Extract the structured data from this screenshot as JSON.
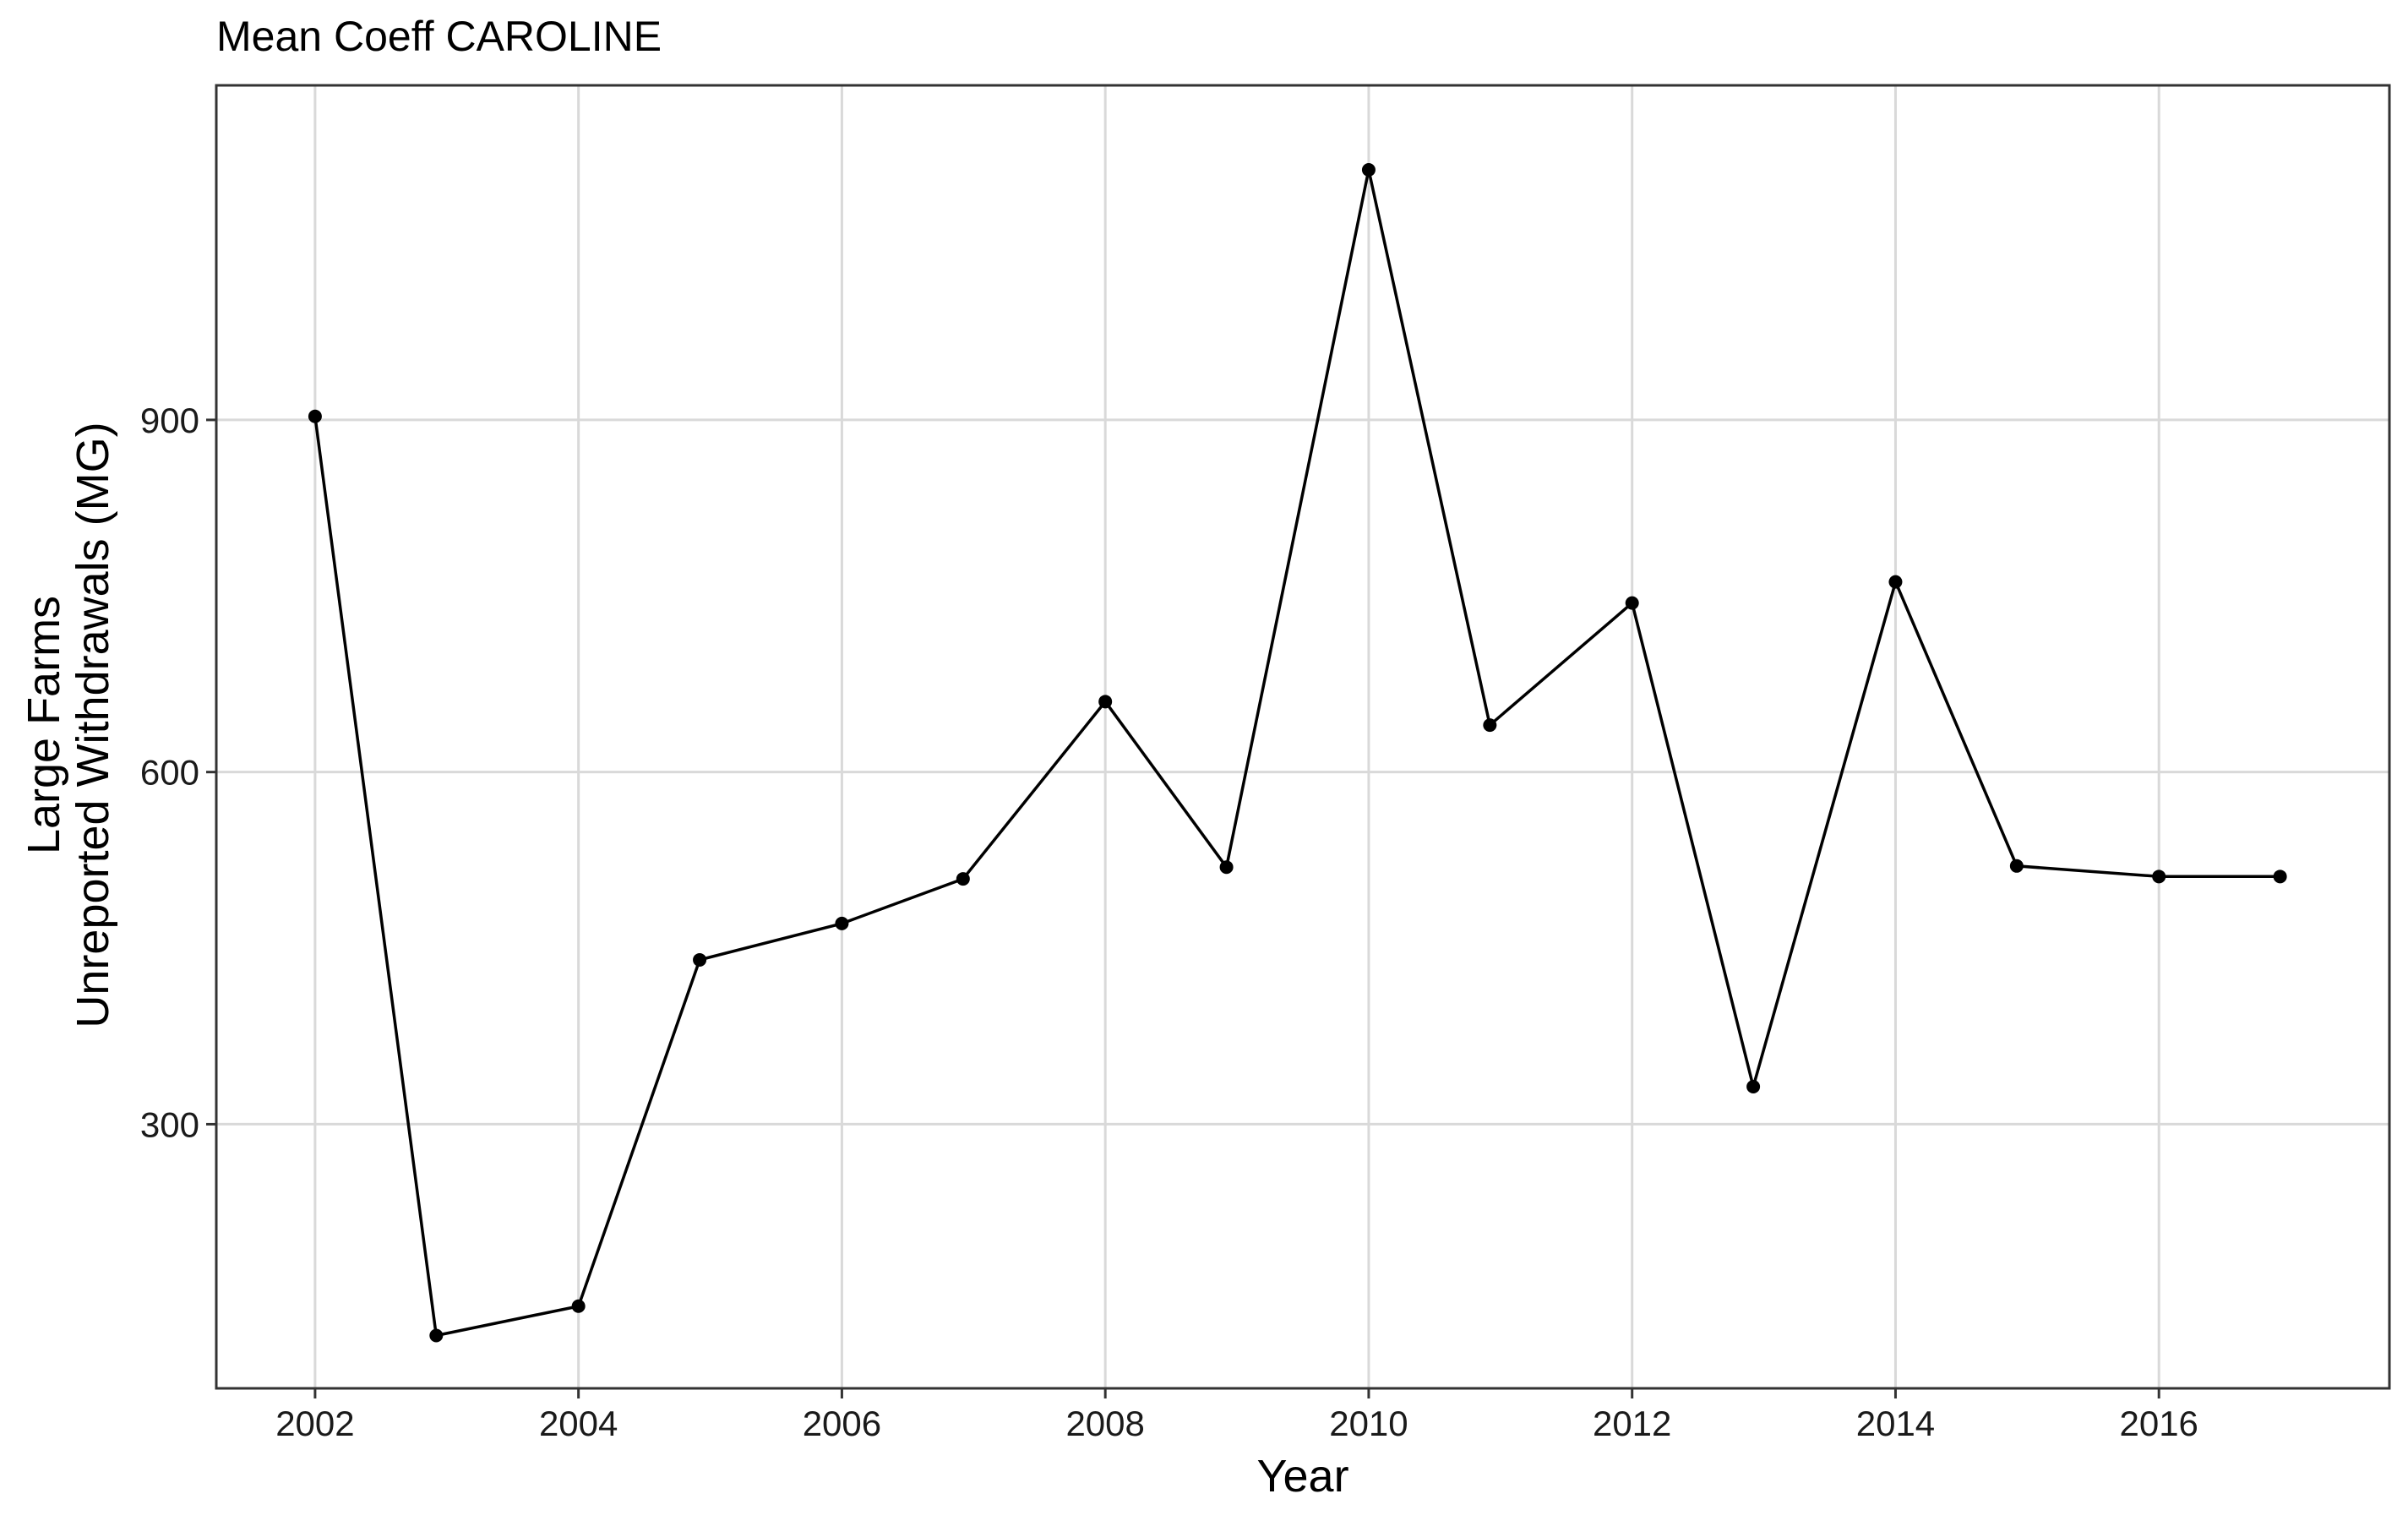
{
  "chart_data": {
    "type": "line",
    "title": "Mean Coeff CAROLINE",
    "xlabel": "Year",
    "ylabel_lines": [
      "Large Farms",
      "Unreported Withdrawals (MG)"
    ],
    "x": [
      2002,
      2002.92,
      2004,
      2004.92,
      2006,
      2006.92,
      2008,
      2008.92,
      2010,
      2010.92,
      2012,
      2012.92,
      2014,
      2014.92,
      2016,
      2016.92
    ],
    "series": [
      {
        "name": "Unreported Withdrawals",
        "values": [
          903,
          120,
          145,
          440,
          471,
          509,
          660,
          519,
          1113,
          640,
          744,
          332,
          762,
          520,
          511,
          511
        ]
      }
    ],
    "xlim": [
      2001.25,
      2017.75
    ],
    "ylim": [
      75,
      1185
    ],
    "x_ticks": [
      2002,
      2004,
      2006,
      2008,
      2010,
      2012,
      2014,
      2016
    ],
    "x_tick_labels": [
      "2002",
      "2004",
      "2006",
      "2008",
      "2010",
      "2012",
      "2014",
      "2016"
    ],
    "y_ticks": [
      300,
      600,
      900
    ],
    "y_tick_labels": [
      "300",
      "600",
      "900"
    ],
    "grid": true,
    "legend": "none"
  }
}
